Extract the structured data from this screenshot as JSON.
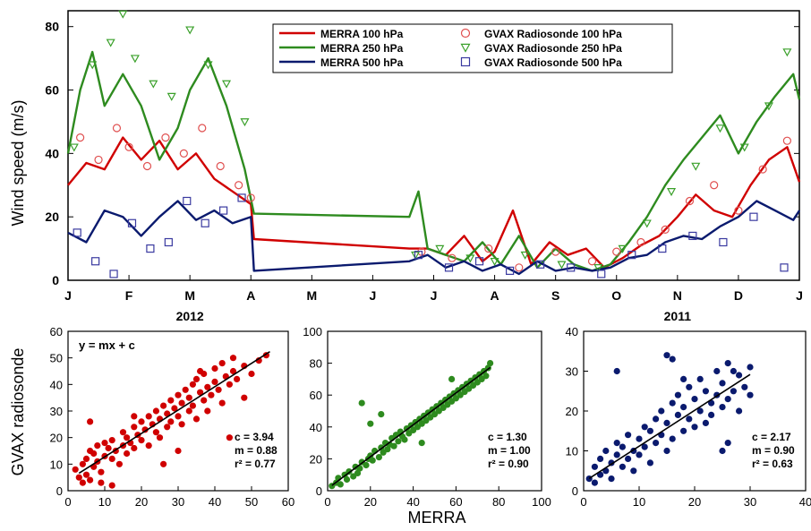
{
  "colors": {
    "red": "#d00000",
    "green": "#2e8b1f",
    "navy": "#0a1a6e",
    "marker_red": "#e05050",
    "marker_green": "#3aa02a",
    "marker_navy": "#3a3aa0",
    "axis": "#000000",
    "fit": "#000000"
  },
  "ylabel_left": "GVAX radiosonde",
  "xlabel_bottom": "MERRA",
  "chart_data": [
    {
      "type": "line",
      "ylabel": "Wind speed (m/s)",
      "ylim": [
        0,
        85
      ],
      "yticks": [
        0,
        20,
        40,
        60,
        80
      ],
      "xlim": [
        0,
        12
      ],
      "month_labels": [
        "J",
        "F",
        "M",
        "A",
        "M",
        "J",
        "J",
        "A",
        "S",
        "O",
        "N",
        "D",
        "J"
      ],
      "year_labels": [
        {
          "text": "2012",
          "x": 2.0
        },
        {
          "text": "2011",
          "x": 10.0
        }
      ],
      "gap": {
        "start": 3.05,
        "end": 5.6
      },
      "legend_lines": [
        {
          "name": "MERRA 100 hPa",
          "color": "red"
        },
        {
          "name": "MERRA 250 hPa",
          "color": "green"
        },
        {
          "name": "MERRA 500 hPa",
          "color": "navy"
        }
      ],
      "legend_markers": [
        {
          "name": "GVAX Radiosonde 100 hPa",
          "color": "marker_red",
          "marker": "circle"
        },
        {
          "name": "GVAX Radiosonde 250 hPa",
          "color": "marker_green",
          "marker": "triangle"
        },
        {
          "name": "GVAX Radiosonde 500 hPa",
          "color": "marker_navy",
          "marker": "square"
        }
      ],
      "series": [
        {
          "name": "MERRA 100 hPa",
          "color": "red",
          "x": [
            0.0,
            0.3,
            0.6,
            0.9,
            1.2,
            1.5,
            1.8,
            2.1,
            2.4,
            2.7,
            3.0,
            3.05,
            5.6,
            5.9,
            6.2,
            6.5,
            6.8,
            7.0,
            7.3,
            7.6,
            7.9,
            8.2,
            8.5,
            8.8,
            9.1,
            9.4,
            9.7,
            10.0,
            10.3,
            10.6,
            10.9,
            11.2,
            11.5,
            11.8,
            12.0
          ],
          "values": [
            30,
            37,
            35,
            45,
            38,
            44,
            35,
            40,
            32,
            28,
            24,
            13,
            10,
            10,
            8,
            14,
            6,
            9,
            22,
            5,
            12,
            8,
            10,
            4,
            7,
            11,
            14,
            20,
            27,
            22,
            20,
            30,
            38,
            42,
            31
          ]
        },
        {
          "name": "MERRA 250 hPa",
          "color": "green",
          "x": [
            0.0,
            0.2,
            0.4,
            0.6,
            0.9,
            1.2,
            1.5,
            1.8,
            2.0,
            2.3,
            2.6,
            2.9,
            3.05,
            5.6,
            5.75,
            5.9,
            6.2,
            6.5,
            6.8,
            7.1,
            7.4,
            7.7,
            8.0,
            8.3,
            8.6,
            8.9,
            9.2,
            9.5,
            9.8,
            10.1,
            10.4,
            10.7,
            11.0,
            11.3,
            11.6,
            11.9,
            12.0
          ],
          "values": [
            40,
            60,
            72,
            55,
            65,
            55,
            38,
            48,
            60,
            70,
            55,
            35,
            21,
            20,
            28,
            10,
            8,
            6,
            12,
            5,
            14,
            4,
            10,
            5,
            3,
            5,
            12,
            20,
            30,
            38,
            45,
            52,
            40,
            50,
            58,
            65,
            57
          ]
        },
        {
          "name": "MERRA 500 hPa",
          "color": "navy",
          "x": [
            0.0,
            0.3,
            0.6,
            0.9,
            1.2,
            1.5,
            1.8,
            2.1,
            2.4,
            2.7,
            3.0,
            3.05,
            5.6,
            5.9,
            6.2,
            6.5,
            6.8,
            7.1,
            7.4,
            7.7,
            8.0,
            8.3,
            8.6,
            8.9,
            9.2,
            9.5,
            9.8,
            10.1,
            10.4,
            10.7,
            11.0,
            11.3,
            11.6,
            11.9,
            12.0
          ],
          "values": [
            15,
            12,
            22,
            20,
            14,
            20,
            25,
            19,
            22,
            18,
            20,
            3,
            6,
            8,
            4,
            6,
            3,
            5,
            2,
            6,
            3,
            4,
            3,
            4,
            7,
            8,
            12,
            14,
            13,
            17,
            20,
            25,
            22,
            19,
            22
          ]
        }
      ],
      "scatter_series": [
        {
          "name": "GVAX Radiosonde 100 hPa",
          "color": "marker_red",
          "marker": "circle",
          "x": [
            0.2,
            0.5,
            0.8,
            1.0,
            1.3,
            1.6,
            1.9,
            2.2,
            2.5,
            2.8,
            3.0,
            5.8,
            6.3,
            6.9,
            7.4,
            8.0,
            8.6,
            9.0,
            9.4,
            9.8,
            10.2,
            10.6,
            11.0,
            11.4,
            11.8
          ],
          "values": [
            45,
            38,
            48,
            42,
            36,
            45,
            40,
            48,
            36,
            30,
            26,
            9,
            7,
            10,
            4,
            9,
            6,
            9,
            12,
            16,
            25,
            30,
            22,
            35,
            44
          ]
        },
        {
          "name": "GVAX Radiosonde 250 hPa",
          "color": "marker_green",
          "marker": "triangle",
          "x": [
            0.1,
            0.4,
            0.7,
            0.9,
            1.1,
            1.4,
            1.7,
            2.0,
            2.3,
            2.6,
            2.9,
            5.7,
            6.1,
            6.6,
            7.0,
            7.5,
            8.1,
            8.7,
            9.1,
            9.5,
            9.9,
            10.3,
            10.7,
            11.1,
            11.5,
            11.8
          ],
          "values": [
            42,
            68,
            75,
            84,
            70,
            62,
            58,
            79,
            68,
            62,
            50,
            8,
            10,
            7,
            6,
            8,
            5,
            4,
            10,
            18,
            28,
            36,
            48,
            42,
            55,
            72
          ]
        },
        {
          "name": "GVAX Radiosonde 500 hPa",
          "color": "marker_navy",
          "marker": "square",
          "x": [
            0.15,
            0.45,
            0.75,
            1.05,
            1.35,
            1.65,
            1.95,
            2.25,
            2.55,
            2.85,
            5.75,
            6.25,
            6.75,
            7.25,
            7.75,
            8.25,
            8.75,
            9.25,
            9.75,
            10.25,
            10.75,
            11.25,
            11.75
          ],
          "values": [
            15,
            6,
            2,
            18,
            10,
            12,
            25,
            18,
            22,
            26,
            8,
            4,
            6,
            3,
            5,
            4,
            2,
            8,
            10,
            14,
            12,
            20,
            4
          ]
        }
      ]
    },
    {
      "type": "scatter",
      "color": "red",
      "xlim": [
        0,
        60
      ],
      "ylim": [
        0,
        60
      ],
      "xticks": [
        0,
        10,
        20,
        30,
        40,
        50,
        60
      ],
      "yticks": [
        0,
        10,
        20,
        30,
        40,
        50,
        60
      ],
      "equation": "y = mx + c",
      "stats": [
        "c = 3.94",
        "m = 0.88",
        "r² = 0.77"
      ],
      "fit": {
        "m": 0.88,
        "c": 3.94,
        "x": [
          3,
          55
        ]
      },
      "x": [
        2,
        3,
        4,
        4,
        5,
        5,
        6,
        6,
        7,
        7,
        8,
        8,
        9,
        10,
        10,
        11,
        12,
        12,
        13,
        14,
        15,
        15,
        16,
        16,
        17,
        18,
        18,
        19,
        20,
        20,
        21,
        22,
        22,
        23,
        24,
        24,
        25,
        25,
        26,
        27,
        27,
        28,
        28,
        29,
        30,
        30,
        31,
        31,
        32,
        33,
        33,
        34,
        34,
        35,
        35,
        36,
        37,
        37,
        38,
        38,
        39,
        40,
        40,
        41,
        42,
        42,
        43,
        44,
        45,
        45,
        46,
        48,
        50,
        52,
        54,
        6,
        9,
        12,
        18,
        26,
        30,
        36,
        44,
        48
      ],
      "values": [
        8,
        5,
        10,
        3,
        12,
        6,
        15,
        4,
        9,
        14,
        11,
        17,
        7,
        13,
        18,
        16,
        12,
        19,
        15,
        10,
        17,
        22,
        14,
        20,
        18,
        16,
        24,
        21,
        19,
        26,
        23,
        17,
        28,
        25,
        22,
        30,
        27,
        20,
        32,
        24,
        29,
        34,
        26,
        31,
        28,
        36,
        33,
        25,
        38,
        30,
        35,
        40,
        32,
        27,
        42,
        37,
        34,
        44,
        30,
        39,
        36,
        41,
        46,
        38,
        33,
        48,
        43,
        40,
        50,
        45,
        42,
        47,
        44,
        49,
        51,
        26,
        3,
        2,
        28,
        10,
        15,
        45,
        20,
        35
      ]
    },
    {
      "type": "scatter",
      "color": "green",
      "xlim": [
        0,
        100
      ],
      "ylim": [
        0,
        100
      ],
      "xticks": [
        0,
        20,
        40,
        60,
        80,
        100
      ],
      "yticks": [
        0,
        20,
        40,
        60,
        80,
        100
      ],
      "stats": [
        "c = 1.30",
        "m = 1.00",
        "r² = 0.90"
      ],
      "fit": {
        "m": 1.0,
        "c": 1.3,
        "x": [
          2,
          76
        ]
      },
      "x": [
        2,
        4,
        5,
        6,
        8,
        9,
        10,
        12,
        13,
        14,
        15,
        16,
        18,
        19,
        20,
        21,
        22,
        24,
        25,
        26,
        27,
        28,
        29,
        30,
        31,
        32,
        33,
        34,
        35,
        36,
        37,
        38,
        39,
        40,
        41,
        42,
        43,
        44,
        45,
        46,
        47,
        48,
        49,
        50,
        51,
        52,
        53,
        54,
        55,
        56,
        57,
        58,
        59,
        60,
        61,
        62,
        63,
        64,
        65,
        66,
        67,
        68,
        69,
        70,
        71,
        72,
        73,
        74,
        75,
        76,
        16,
        20,
        25,
        44,
        58
      ],
      "values": [
        3,
        5,
        8,
        4,
        10,
        7,
        12,
        9,
        15,
        11,
        14,
        18,
        16,
        20,
        22,
        19,
        25,
        21,
        27,
        24,
        30,
        26,
        29,
        33,
        28,
        35,
        31,
        37,
        34,
        32,
        39,
        36,
        41,
        38,
        43,
        40,
        45,
        42,
        47,
        44,
        49,
        46,
        51,
        48,
        53,
        50,
        55,
        52,
        57,
        54,
        59,
        56,
        61,
        58,
        63,
        60,
        65,
        62,
        67,
        64,
        69,
        66,
        71,
        68,
        73,
        70,
        75,
        72,
        77,
        80,
        55,
        42,
        48,
        30,
        70
      ]
    },
    {
      "type": "scatter",
      "color": "navy",
      "xlim": [
        0,
        40
      ],
      "ylim": [
        0,
        40
      ],
      "xticks": [
        0,
        10,
        20,
        30,
        40
      ],
      "yticks": [
        0,
        10,
        20,
        30,
        40
      ],
      "stats": [
        "c = 2.17",
        "m = 0.90",
        "r² = 0.63"
      ],
      "fit": {
        "m": 0.9,
        "c": 2.17,
        "x": [
          1,
          30
        ]
      },
      "x": [
        1,
        2,
        2,
        3,
        3,
        4,
        4,
        5,
        5,
        6,
        6,
        7,
        7,
        8,
        8,
        9,
        9,
        10,
        10,
        11,
        11,
        12,
        12,
        13,
        13,
        14,
        14,
        15,
        15,
        16,
        16,
        17,
        17,
        18,
        18,
        19,
        19,
        20,
        20,
        21,
        21,
        22,
        22,
        23,
        23,
        24,
        24,
        25,
        25,
        26,
        26,
        27,
        28,
        28,
        29,
        30,
        30,
        6,
        15,
        16,
        18,
        25,
        26,
        27
      ],
      "values": [
        3,
        6,
        2,
        8,
        4,
        5,
        10,
        7,
        3,
        9,
        12,
        6,
        11,
        8,
        14,
        10,
        5,
        13,
        9,
        16,
        11,
        7,
        15,
        18,
        12,
        14,
        20,
        10,
        17,
        22,
        13,
        19,
        24,
        15,
        21,
        18,
        26,
        16,
        23,
        20,
        28,
        17,
        25,
        22,
        19,
        30,
        24,
        21,
        27,
        23,
        32,
        25,
        20,
        29,
        26,
        31,
        24,
        30,
        34,
        33,
        28,
        10,
        12,
        30
      ]
    }
  ]
}
